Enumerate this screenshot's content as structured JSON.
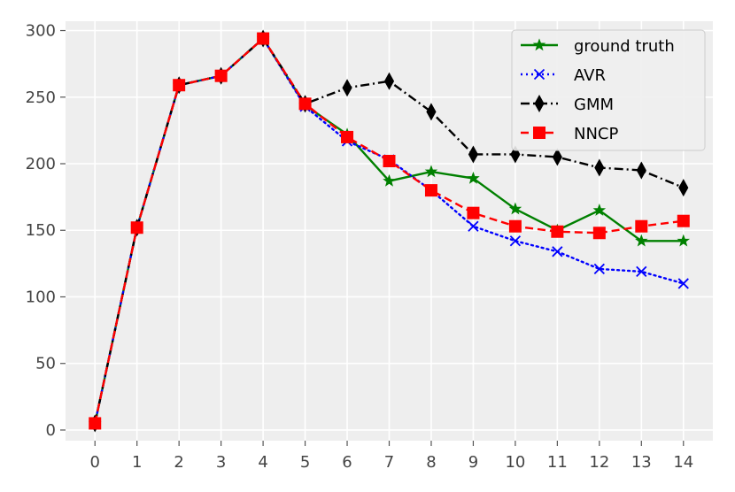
{
  "chart_data": {
    "type": "line",
    "title": "",
    "xlabel": "",
    "ylabel": "",
    "x": [
      0,
      1,
      2,
      3,
      4,
      5,
      6,
      7,
      8,
      9,
      10,
      11,
      12,
      13,
      14
    ],
    "xlim": [
      -0.7,
      14.7
    ],
    "ylim": [
      -8,
      307
    ],
    "xticks": [
      "0",
      "1",
      "2",
      "3",
      "4",
      "5",
      "6",
      "7",
      "8",
      "9",
      "10",
      "11",
      "12",
      "13",
      "14"
    ],
    "yticks": [
      "0",
      "50",
      "100",
      "150",
      "200",
      "250",
      "300"
    ],
    "grid": true,
    "legend_position": "top-right",
    "background_color": "#eeeeee",
    "series": [
      {
        "name": "ground truth",
        "color": "#008000",
        "line_style": "solid",
        "marker": "star",
        "values": [
          5,
          152,
          259,
          266,
          294,
          244,
          222,
          187,
          194,
          189,
          166,
          150,
          165,
          142,
          142
        ]
      },
      {
        "name": "AVR",
        "color": "#0000ff",
        "line_style": "dotted",
        "marker": "x",
        "values": [
          5,
          152,
          259,
          266,
          294,
          243,
          217,
          203,
          180,
          153,
          142,
          134,
          121,
          119,
          110
        ]
      },
      {
        "name": "GMM",
        "color": "#000000",
        "line_style": "dashdot",
        "marker": "thin-diamond",
        "values": [
          5,
          152,
          259,
          266,
          294,
          245,
          257,
          262,
          239,
          207,
          207,
          205,
          197,
          195,
          182
        ]
      },
      {
        "name": "NNCP",
        "color": "#ff0000",
        "line_style": "dashed",
        "marker": "square",
        "values": [
          5,
          152,
          259,
          266,
          294,
          245,
          220,
          202,
          180,
          163,
          153,
          149,
          148,
          153,
          157
        ]
      }
    ]
  }
}
